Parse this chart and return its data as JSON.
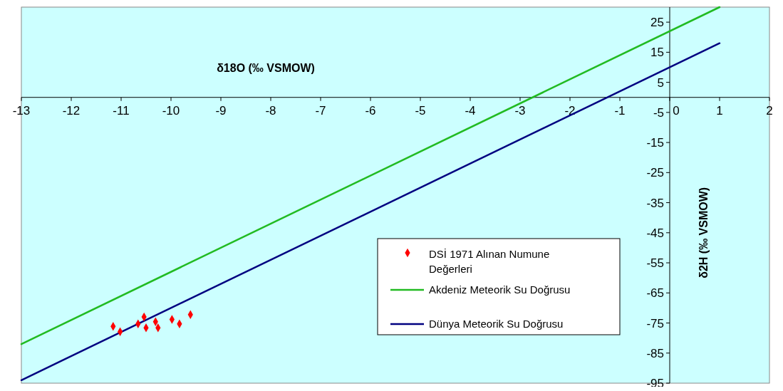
{
  "chart_data": {
    "type": "scatter",
    "xlabel": "δ18O (‰ VSMOW)",
    "ylabel": "δ2H (‰ VSMOW)",
    "xlim": [
      -13,
      2
    ],
    "xticks": [
      -13,
      -12,
      -11,
      -10,
      -9,
      -8,
      -7,
      -6,
      -5,
      -4,
      -3,
      -2,
      -1,
      0,
      1,
      2
    ],
    "ylim": [
      -95,
      30
    ],
    "yticks": [
      -95,
      -85,
      -75,
      -65,
      -55,
      -45,
      -35,
      -25,
      -15,
      -5,
      5,
      15,
      25
    ],
    "grid": false,
    "legend": "bottom right",
    "series": [
      {
        "name": "DSİ 1971 Alınan Numune Değerleri",
        "marker": "diamond",
        "color": "#ff0000",
        "x": [
          -11.16,
          -11.02,
          -10.66,
          -10.54,
          -10.5,
          -10.31,
          -10.26,
          -9.98,
          -9.83,
          -9.61
        ],
        "values": [
          -76.1,
          -77.9,
          -75.3,
          -73.0,
          -76.6,
          -74.6,
          -76.6,
          -73.8,
          -75.3,
          -72.2
        ]
      },
      {
        "name": "Akdeniz Meteorik Su Doğrusu",
        "type": "line",
        "marker": "none",
        "color": "#22bb22",
        "x": [
          -13,
          1
        ],
        "values": [
          -82,
          30
        ]
      },
      {
        "name": "Dünya Meteorik Su Doğrusu",
        "type": "line",
        "marker": "none",
        "color": "#000080",
        "x": [
          -13,
          1
        ],
        "values": [
          -94,
          18
        ]
      }
    ]
  }
}
